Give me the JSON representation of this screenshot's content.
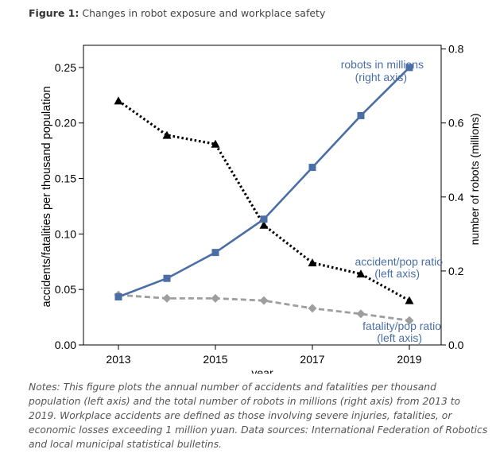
{
  "figure": {
    "label": "Figure 1:",
    "title": "Changes in robot exposure and workplace safety",
    "notes": "Notes: This figure plots the annual number of accidents and fatalities per thousand population (left axis) and the total number of robots in millions (right axis) from 2013 to 2019. Workplace accidents are defined as those involving severe injuries, fatalities, or economic losses exceeding 1 million yuan. Data sources: International Federation of Robotics and local municipal statistical bulletins."
  },
  "chart_data": {
    "type": "line",
    "xlabel": "year",
    "ylabel_left": "accidents/fatalities per thousand population",
    "ylabel_right": "number of robots (millions)",
    "xlim": [
      2013,
      2019
    ],
    "x_ticks": [
      2013,
      2015,
      2017,
      2019
    ],
    "x_tick_labels": [
      "2013",
      "2015",
      "2017",
      "2019"
    ],
    "ylim_left": [
      0,
      0.27
    ],
    "ylim_right": [
      0,
      0.81
    ],
    "y_ticks_left": [
      0,
      0.05,
      0.1,
      0.15,
      0.2,
      0.25
    ],
    "y_tick_labels_left": [
      "0.00",
      "0.05",
      "0.10",
      "0.15",
      "0.20",
      "0.25"
    ],
    "y_ticks_right": [
      0,
      0.2,
      0.4,
      0.6,
      0.8
    ],
    "y_tick_labels_right": [
      "0.0",
      "0.2",
      "0.4",
      "0.6",
      "0.8"
    ],
    "x": [
      2013,
      2014,
      2015,
      2016,
      2017,
      2018,
      2019
    ],
    "series": [
      {
        "name": "robots in millions (right axis)",
        "label_lines": [
          "robots in millions",
          "(right axis)"
        ],
        "axis": "right",
        "color": "#4a6ea5",
        "style": "solid",
        "marker": "square",
        "values": [
          0.13,
          0.18,
          0.25,
          0.34,
          0.48,
          0.62,
          0.75
        ]
      },
      {
        "name": "accident/pop ratio (left axis)",
        "label_lines": [
          "accident/pop ratio",
          "(left axis)"
        ],
        "axis": "left",
        "color": "#000000",
        "style": "dotted",
        "marker": "triangle",
        "values": [
          0.22,
          0.189,
          0.181,
          0.108,
          0.074,
          0.064,
          0.04
        ]
      },
      {
        "name": "fatality/pop ratio (left axis)",
        "label_lines": [
          "fatality/pop ratio",
          "(left axis)"
        ],
        "axis": "left",
        "color": "#9e9e9e",
        "style": "dashed",
        "marker": "diamond",
        "values": [
          0.045,
          0.042,
          0.042,
          0.04,
          0.033,
          0.028,
          0.022
        ]
      }
    ],
    "grid": false,
    "legend": "inline labels"
  }
}
